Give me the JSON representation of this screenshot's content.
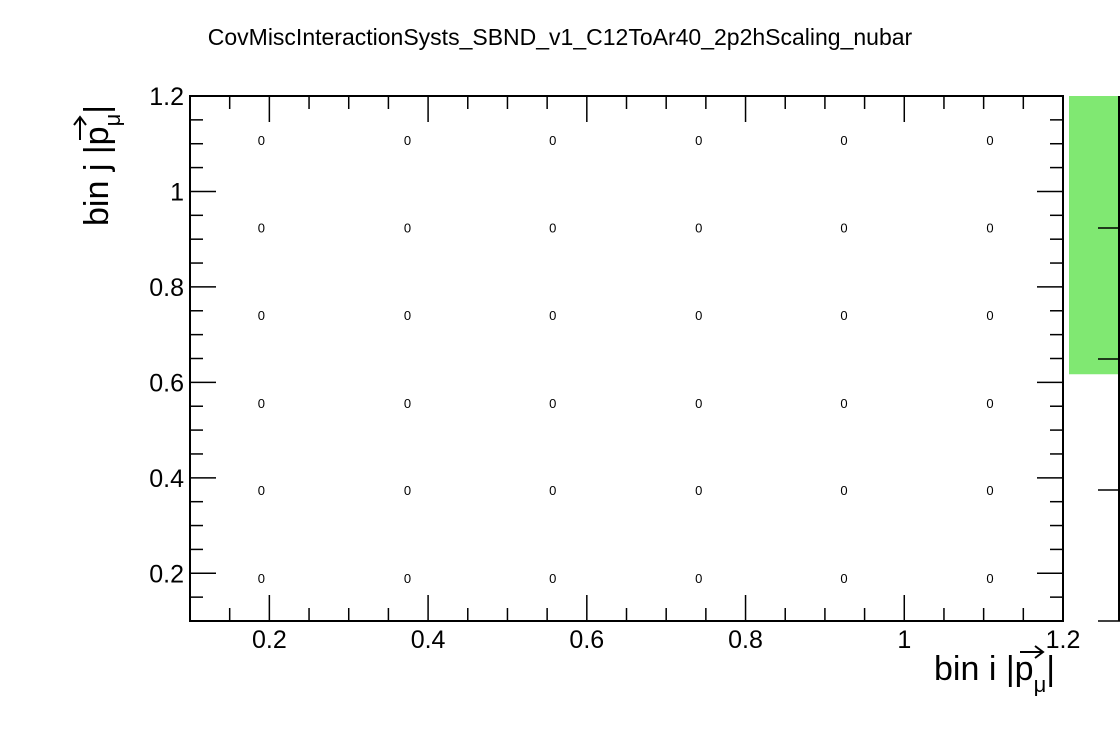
{
  "chart_data": {
    "type": "heatmap",
    "title": "CovMiscInteractionSysts_SBND_v1_C12ToAr40_2p2hScaling_nubar",
    "xlabel": {
      "main": "bin i |",
      "vec": "p",
      "sub": "μ",
      "end": "|"
    },
    "ylabel": {
      "main": "bin j |",
      "vec": "p",
      "sub": "μ",
      "end": "|"
    },
    "xlim": [
      0.1,
      1.2
    ],
    "ylim": [
      0.1,
      1.2
    ],
    "x_ticks": [
      "0.2",
      "0.4",
      "0.6",
      "0.8",
      "1",
      "1.2"
    ],
    "y_ticks": [
      "0.2",
      "0.4",
      "0.6",
      "0.8",
      "1",
      "1.2"
    ],
    "x_centers": [
      0.19,
      0.374,
      0.557,
      0.741,
      0.924,
      1.108
    ],
    "y_centers": [
      0.19,
      0.374,
      0.557,
      0.741,
      0.924,
      1.108
    ],
    "values": [
      [
        "0",
        "0",
        "0",
        "0",
        "0",
        "0"
      ],
      [
        "0",
        "0",
        "0",
        "0",
        "0",
        "0"
      ],
      [
        "0",
        "0",
        "0",
        "0",
        "0",
        "0"
      ],
      [
        "0",
        "0",
        "0",
        "0",
        "0",
        "0"
      ],
      [
        "0",
        "0",
        "0",
        "0",
        "0",
        "0"
      ],
      [
        "0",
        "0",
        "0",
        "0",
        "0",
        "0"
      ]
    ],
    "palette_color": "#80e872",
    "palette_fill_fraction": 0.53,
    "grid": false
  }
}
